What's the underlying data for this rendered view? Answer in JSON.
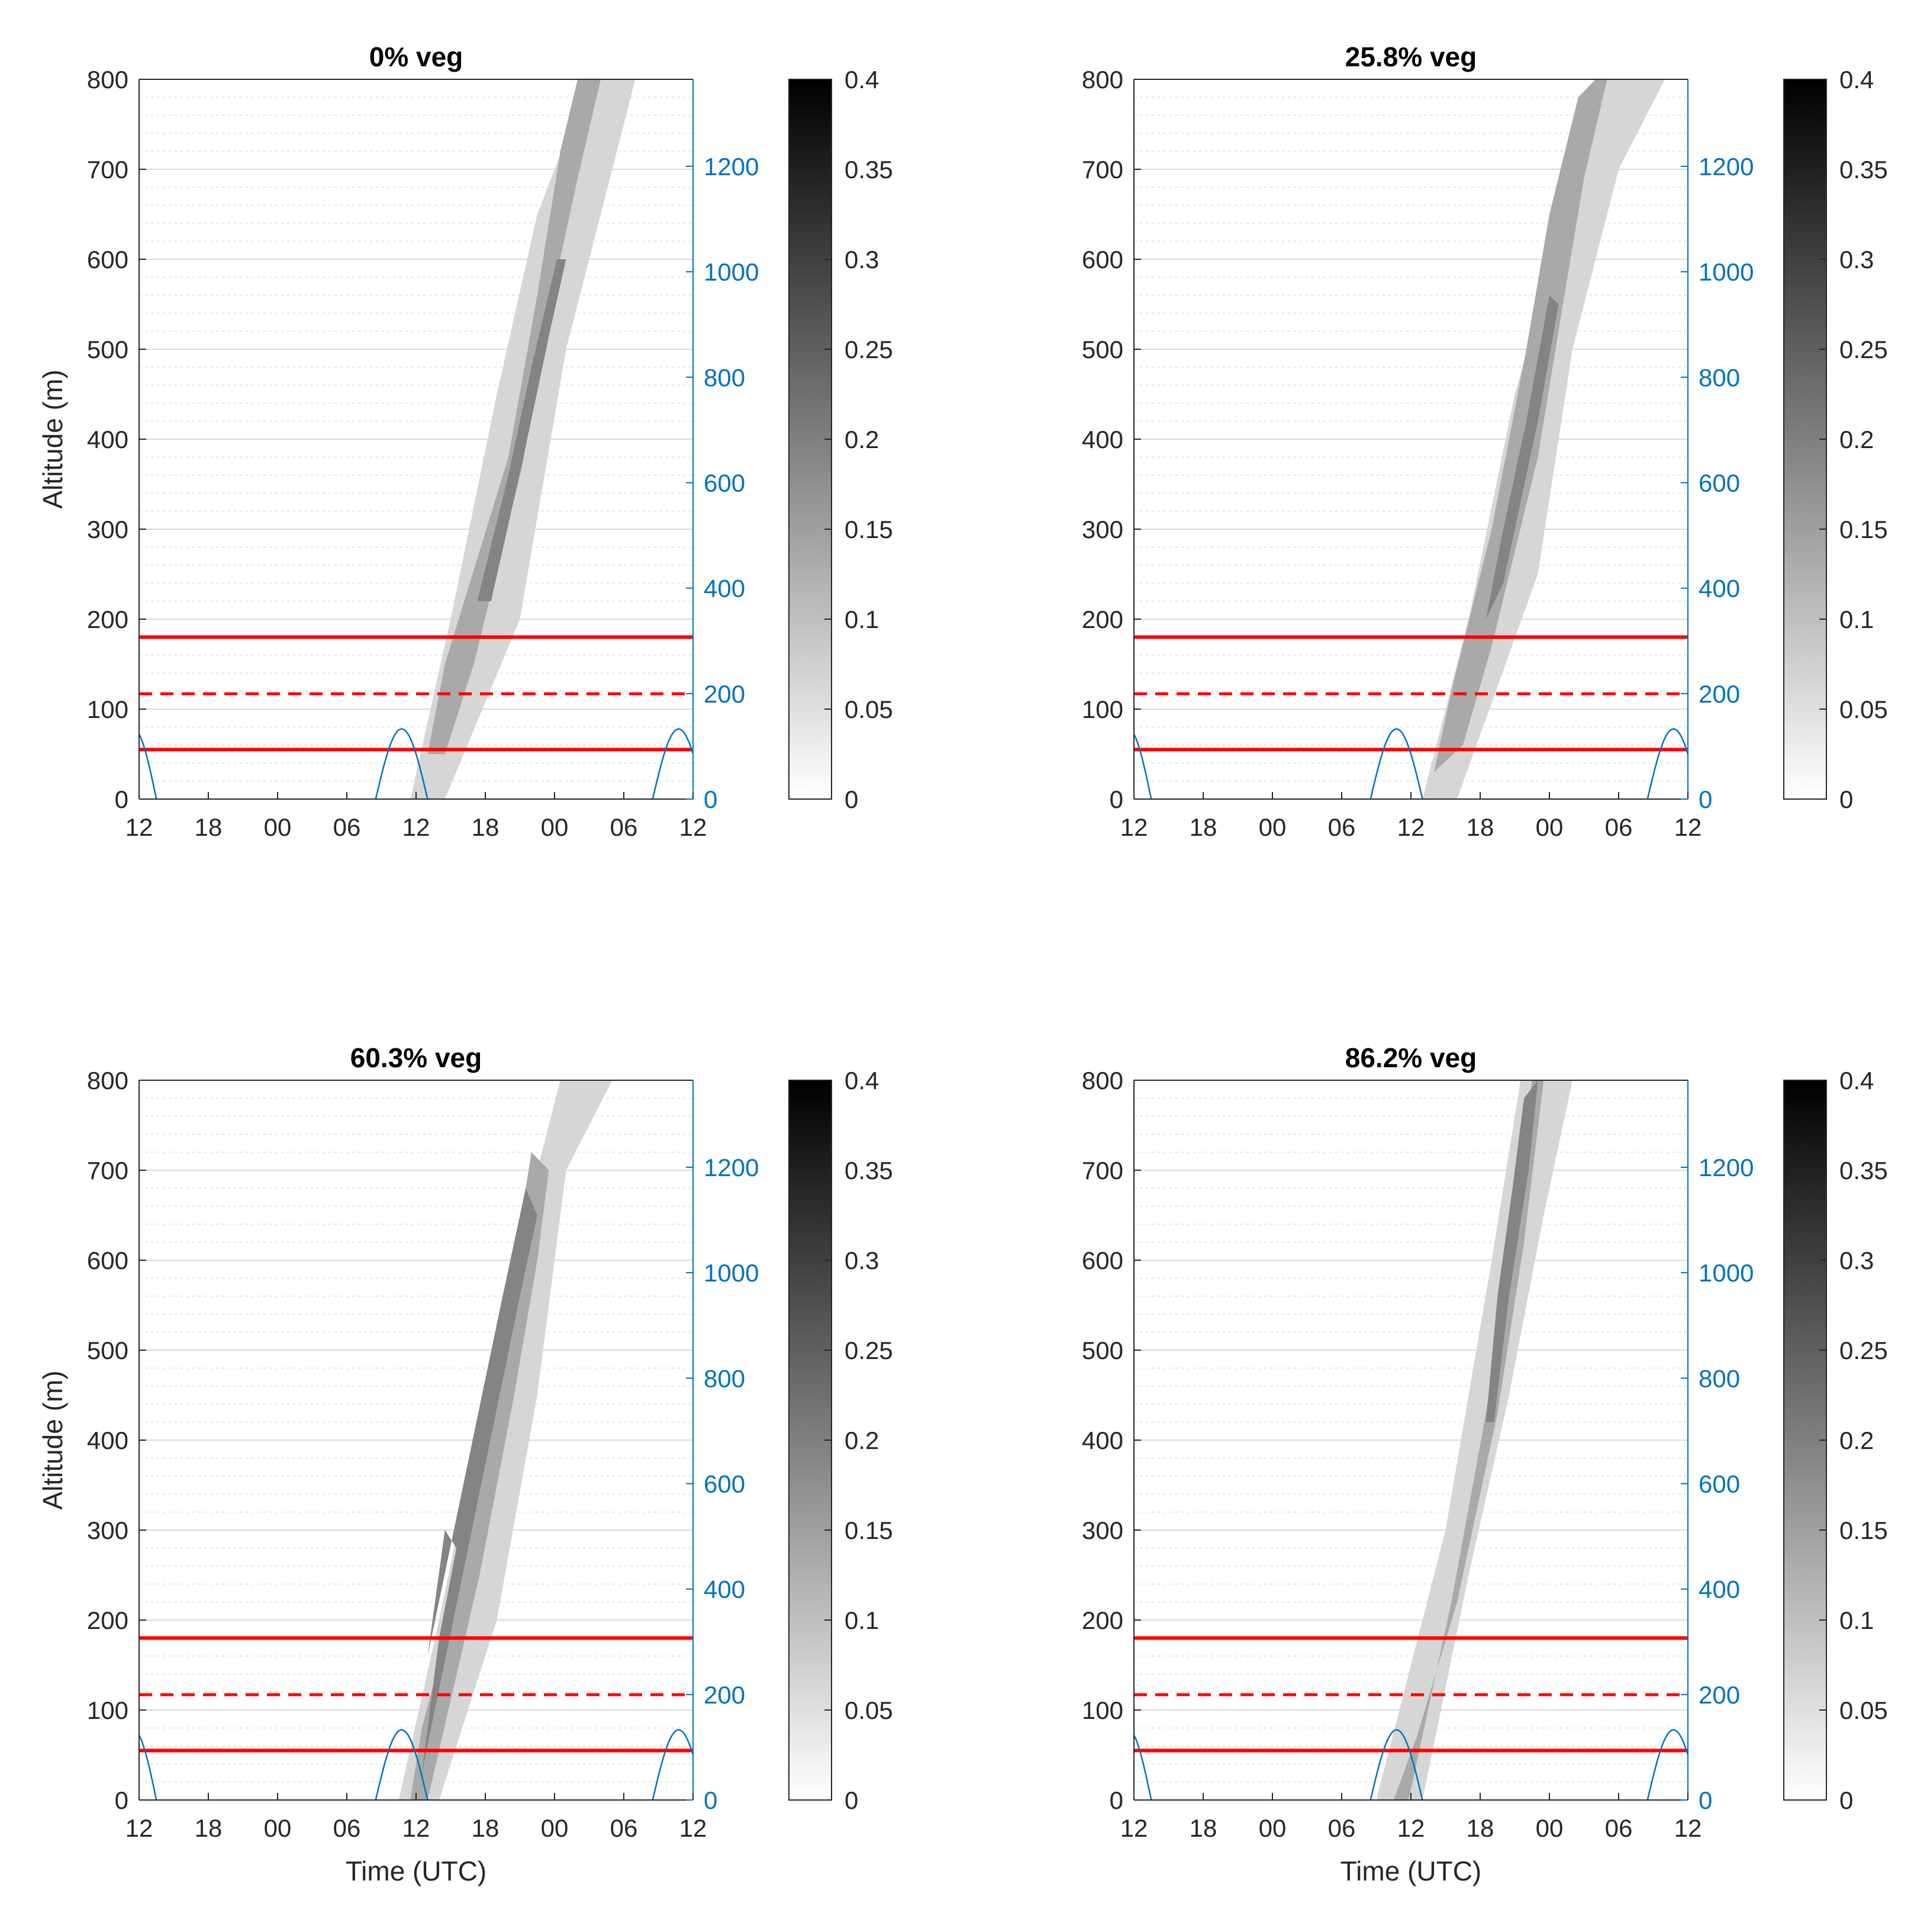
{
  "figure": {
    "colors": {
      "axis": "#262626",
      "right_axis": "#0072BD",
      "grid": "#d9d9d9",
      "red": "#ff0000",
      "plume": "#bdbdbd"
    },
    "colorbar": {
      "ticks": [
        "0",
        "0.05",
        "0.1",
        "0.15",
        "0.2",
        "0.25",
        "0.3",
        "0.35",
        "0.4"
      ],
      "range": [
        0,
        0.4
      ],
      "colormap": "white-to-black"
    }
  },
  "chart_data": [
    {
      "type": "heatmap",
      "title": "0% veg",
      "xlabel": "",
      "ylabel": "Altitude (m)",
      "x_ticks": [
        "12",
        "18",
        "00",
        "06",
        "12",
        "18",
        "00",
        "06",
        "12"
      ],
      "x_range_hours": [
        0,
        48
      ],
      "ylim": [
        0,
        800
      ],
      "y_ticks": [
        "0",
        "100",
        "200",
        "300",
        "400",
        "500",
        "600",
        "700",
        "800"
      ],
      "right_ylim": [
        0,
        1365
      ],
      "right_y_ticks": [
        "0",
        "200",
        "400",
        "600",
        "800",
        "1000",
        "1200"
      ],
      "horizontal_lines": [
        {
          "y": 180,
          "style": "solid"
        },
        {
          "y": 117,
          "style": "dashed"
        },
        {
          "y": 55,
          "style": "solid"
        }
      ],
      "blue_arcs": [
        {
          "start_hour": -2.5,
          "end_hour": 1.5,
          "peak_right_y": 133
        },
        {
          "start_hour": 20.5,
          "end_hour": 25.0,
          "peak_right_y": 133
        },
        {
          "start_hour": 44.5,
          "end_hour": 49.0,
          "peak_right_y": 133
        }
      ],
      "plume": {
        "light": [
          [
            23.5,
            0
          ],
          [
            26.5,
            0
          ],
          [
            33.0,
            200
          ],
          [
            37.0,
            500
          ],
          [
            43.0,
            800
          ],
          [
            39.0,
            800
          ],
          [
            34.5,
            650
          ],
          [
            31.0,
            450
          ],
          [
            27.0,
            200
          ]
        ],
        "medium": [
          [
            25.0,
            50
          ],
          [
            26.5,
            150
          ],
          [
            32.0,
            380
          ],
          [
            34.5,
            560
          ],
          [
            36.5,
            720
          ],
          [
            38.0,
            800
          ],
          [
            40.0,
            800
          ],
          [
            38.0,
            690
          ],
          [
            35.3,
            530
          ],
          [
            33.2,
            370
          ],
          [
            29.0,
            150
          ],
          [
            26.5,
            50
          ]
        ],
        "dark": [
          [
            29.3,
            220
          ],
          [
            30.5,
            220
          ],
          [
            33.3,
            380
          ],
          [
            35.6,
            520
          ],
          [
            37.0,
            600
          ],
          [
            36.2,
            600
          ],
          [
            34.0,
            480
          ],
          [
            32.0,
            360
          ]
        ]
      }
    },
    {
      "type": "heatmap",
      "title": "25.8% veg",
      "xlabel": "",
      "ylabel": "",
      "x_ticks": [
        "12",
        "18",
        "00",
        "06",
        "12",
        "18",
        "00",
        "06",
        "12"
      ],
      "x_range_hours": [
        0,
        48
      ],
      "ylim": [
        0,
        800
      ],
      "y_ticks": [
        "0",
        "100",
        "200",
        "300",
        "400",
        "500",
        "600",
        "700",
        "800"
      ],
      "right_ylim": [
        0,
        1365
      ],
      "right_y_ticks": [
        "0",
        "200",
        "400",
        "600",
        "800",
        "1000",
        "1200"
      ],
      "horizontal_lines": [
        {
          "y": 180,
          "style": "solid"
        },
        {
          "y": 117,
          "style": "dashed"
        },
        {
          "y": 55,
          "style": "solid"
        }
      ],
      "blue_arcs": [
        {
          "start_hour": -2.5,
          "end_hour": 1.5,
          "peak_right_y": 133
        },
        {
          "start_hour": 20.5,
          "end_hour": 25.0,
          "peak_right_y": 133
        },
        {
          "start_hour": 44.5,
          "end_hour": 49.0,
          "peak_right_y": 133
        }
      ],
      "plume": {
        "light": [
          [
            25.0,
            0
          ],
          [
            28.0,
            0
          ],
          [
            35.0,
            250
          ],
          [
            38.0,
            500
          ],
          [
            42.0,
            700
          ],
          [
            46.0,
            800
          ],
          [
            41.0,
            800
          ],
          [
            37.5,
            650
          ],
          [
            33.0,
            450
          ],
          [
            29.0,
            200
          ]
        ],
        "medium": [
          [
            26.0,
            30
          ],
          [
            27.5,
            120
          ],
          [
            31.0,
            300
          ],
          [
            34.0,
            500
          ],
          [
            36.0,
            650
          ],
          [
            38.5,
            780
          ],
          [
            40.0,
            800
          ],
          [
            41.0,
            800
          ],
          [
            39.0,
            690
          ],
          [
            37.3,
            560
          ],
          [
            35.0,
            380
          ],
          [
            31.0,
            170
          ],
          [
            28.5,
            60
          ]
        ],
        "dark": [
          [
            30.5,
            200
          ],
          [
            32.0,
            240
          ],
          [
            35.0,
            420
          ],
          [
            36.8,
            550
          ],
          [
            36.0,
            560
          ],
          [
            34.0,
            420
          ],
          [
            32.0,
            300
          ]
        ]
      }
    },
    {
      "type": "heatmap",
      "title": "60.3% veg",
      "xlabel": "Time (UTC)",
      "ylabel": "Altitude (m)",
      "x_ticks": [
        "12",
        "18",
        "00",
        "06",
        "12",
        "18",
        "00",
        "06",
        "12"
      ],
      "x_range_hours": [
        0,
        48
      ],
      "ylim": [
        0,
        800
      ],
      "y_ticks": [
        "0",
        "100",
        "200",
        "300",
        "400",
        "500",
        "600",
        "700",
        "800"
      ],
      "right_ylim": [
        0,
        1365
      ],
      "right_y_ticks": [
        "0",
        "200",
        "400",
        "600",
        "800",
        "1000",
        "1200"
      ],
      "horizontal_lines": [
        {
          "y": 180,
          "style": "solid"
        },
        {
          "y": 117,
          "style": "dashed"
        },
        {
          "y": 55,
          "style": "solid"
        }
      ],
      "blue_arcs": [
        {
          "start_hour": -2.5,
          "end_hour": 1.5,
          "peak_right_y": 133
        },
        {
          "start_hour": 20.5,
          "end_hour": 25.0,
          "peak_right_y": 133
        },
        {
          "start_hour": 44.5,
          "end_hour": 49.0,
          "peak_right_y": 133
        }
      ],
      "plume": {
        "light": [
          [
            22.5,
            0
          ],
          [
            26.0,
            0
          ],
          [
            31.0,
            200
          ],
          [
            34.5,
            450
          ],
          [
            37.0,
            700
          ],
          [
            41.0,
            800
          ],
          [
            36.5,
            800
          ],
          [
            33.5,
            650
          ],
          [
            30.0,
            450
          ],
          [
            26.0,
            200
          ]
        ],
        "medium": [
          [
            23.5,
            0
          ],
          [
            25.0,
            0
          ],
          [
            29.5,
            250
          ],
          [
            32.5,
            450
          ],
          [
            34.5,
            600
          ],
          [
            35.5,
            700
          ],
          [
            34.0,
            720
          ],
          [
            32.5,
            600
          ],
          [
            30.5,
            420
          ],
          [
            27.0,
            200
          ],
          [
            24.5,
            80
          ]
        ],
        "dark": [
          [
            24.5,
            30
          ],
          [
            26.0,
            180
          ],
          [
            27.5,
            280
          ],
          [
            26.5,
            300
          ],
          [
            25.0,
            160
          ],
          [
            31.5,
            560
          ],
          [
            33.5,
            680
          ],
          [
            34.5,
            650
          ],
          [
            33.0,
            560
          ]
        ]
      }
    },
    {
      "type": "heatmap",
      "title": "86.2% veg",
      "xlabel": "Time (UTC)",
      "ylabel": "",
      "x_ticks": [
        "12",
        "18",
        "00",
        "06",
        "12",
        "18",
        "00",
        "06",
        "12"
      ],
      "x_range_hours": [
        0,
        48
      ],
      "ylim": [
        0,
        800
      ],
      "y_ticks": [
        "0",
        "100",
        "200",
        "300",
        "400",
        "500",
        "600",
        "700",
        "800"
      ],
      "right_ylim": [
        0,
        1365
      ],
      "right_y_ticks": [
        "0",
        "200",
        "400",
        "600",
        "800",
        "1000",
        "1200"
      ],
      "horizontal_lines": [
        {
          "y": 180,
          "style": "solid"
        },
        {
          "y": 117,
          "style": "dashed"
        },
        {
          "y": 55,
          "style": "solid"
        }
      ],
      "blue_arcs": [
        {
          "start_hour": -2.5,
          "end_hour": 1.5,
          "peak_right_y": 133
        },
        {
          "start_hour": 20.5,
          "end_hour": 25.0,
          "peak_right_y": 133
        },
        {
          "start_hour": 44.5,
          "end_hour": 49.0,
          "peak_right_y": 133
        }
      ],
      "plume": {
        "light": [
          [
            21.0,
            0
          ],
          [
            25.0,
            0
          ],
          [
            29.0,
            250
          ],
          [
            32.5,
            450
          ],
          [
            35.5,
            650
          ],
          [
            38.0,
            800
          ],
          [
            33.5,
            800
          ],
          [
            31.0,
            600
          ],
          [
            27.0,
            300
          ],
          [
            24.0,
            150
          ]
        ],
        "medium": [
          [
            22.5,
            0
          ],
          [
            23.8,
            0
          ],
          [
            27.5,
            220
          ],
          [
            30.5,
            430
          ],
          [
            32.5,
            600
          ],
          [
            34.5,
            800
          ],
          [
            35.5,
            800
          ],
          [
            33.8,
            620
          ],
          [
            31.5,
            430
          ],
          [
            28.0,
            220
          ],
          [
            24.5,
            70
          ]
        ],
        "dark": [
          [
            30.5,
            420
          ],
          [
            31.5,
            560
          ],
          [
            32.8,
            680
          ],
          [
            33.8,
            780
          ],
          [
            35.0,
            800
          ],
          [
            34.2,
            700
          ],
          [
            32.5,
            560
          ],
          [
            31.2,
            420
          ]
        ]
      }
    }
  ]
}
